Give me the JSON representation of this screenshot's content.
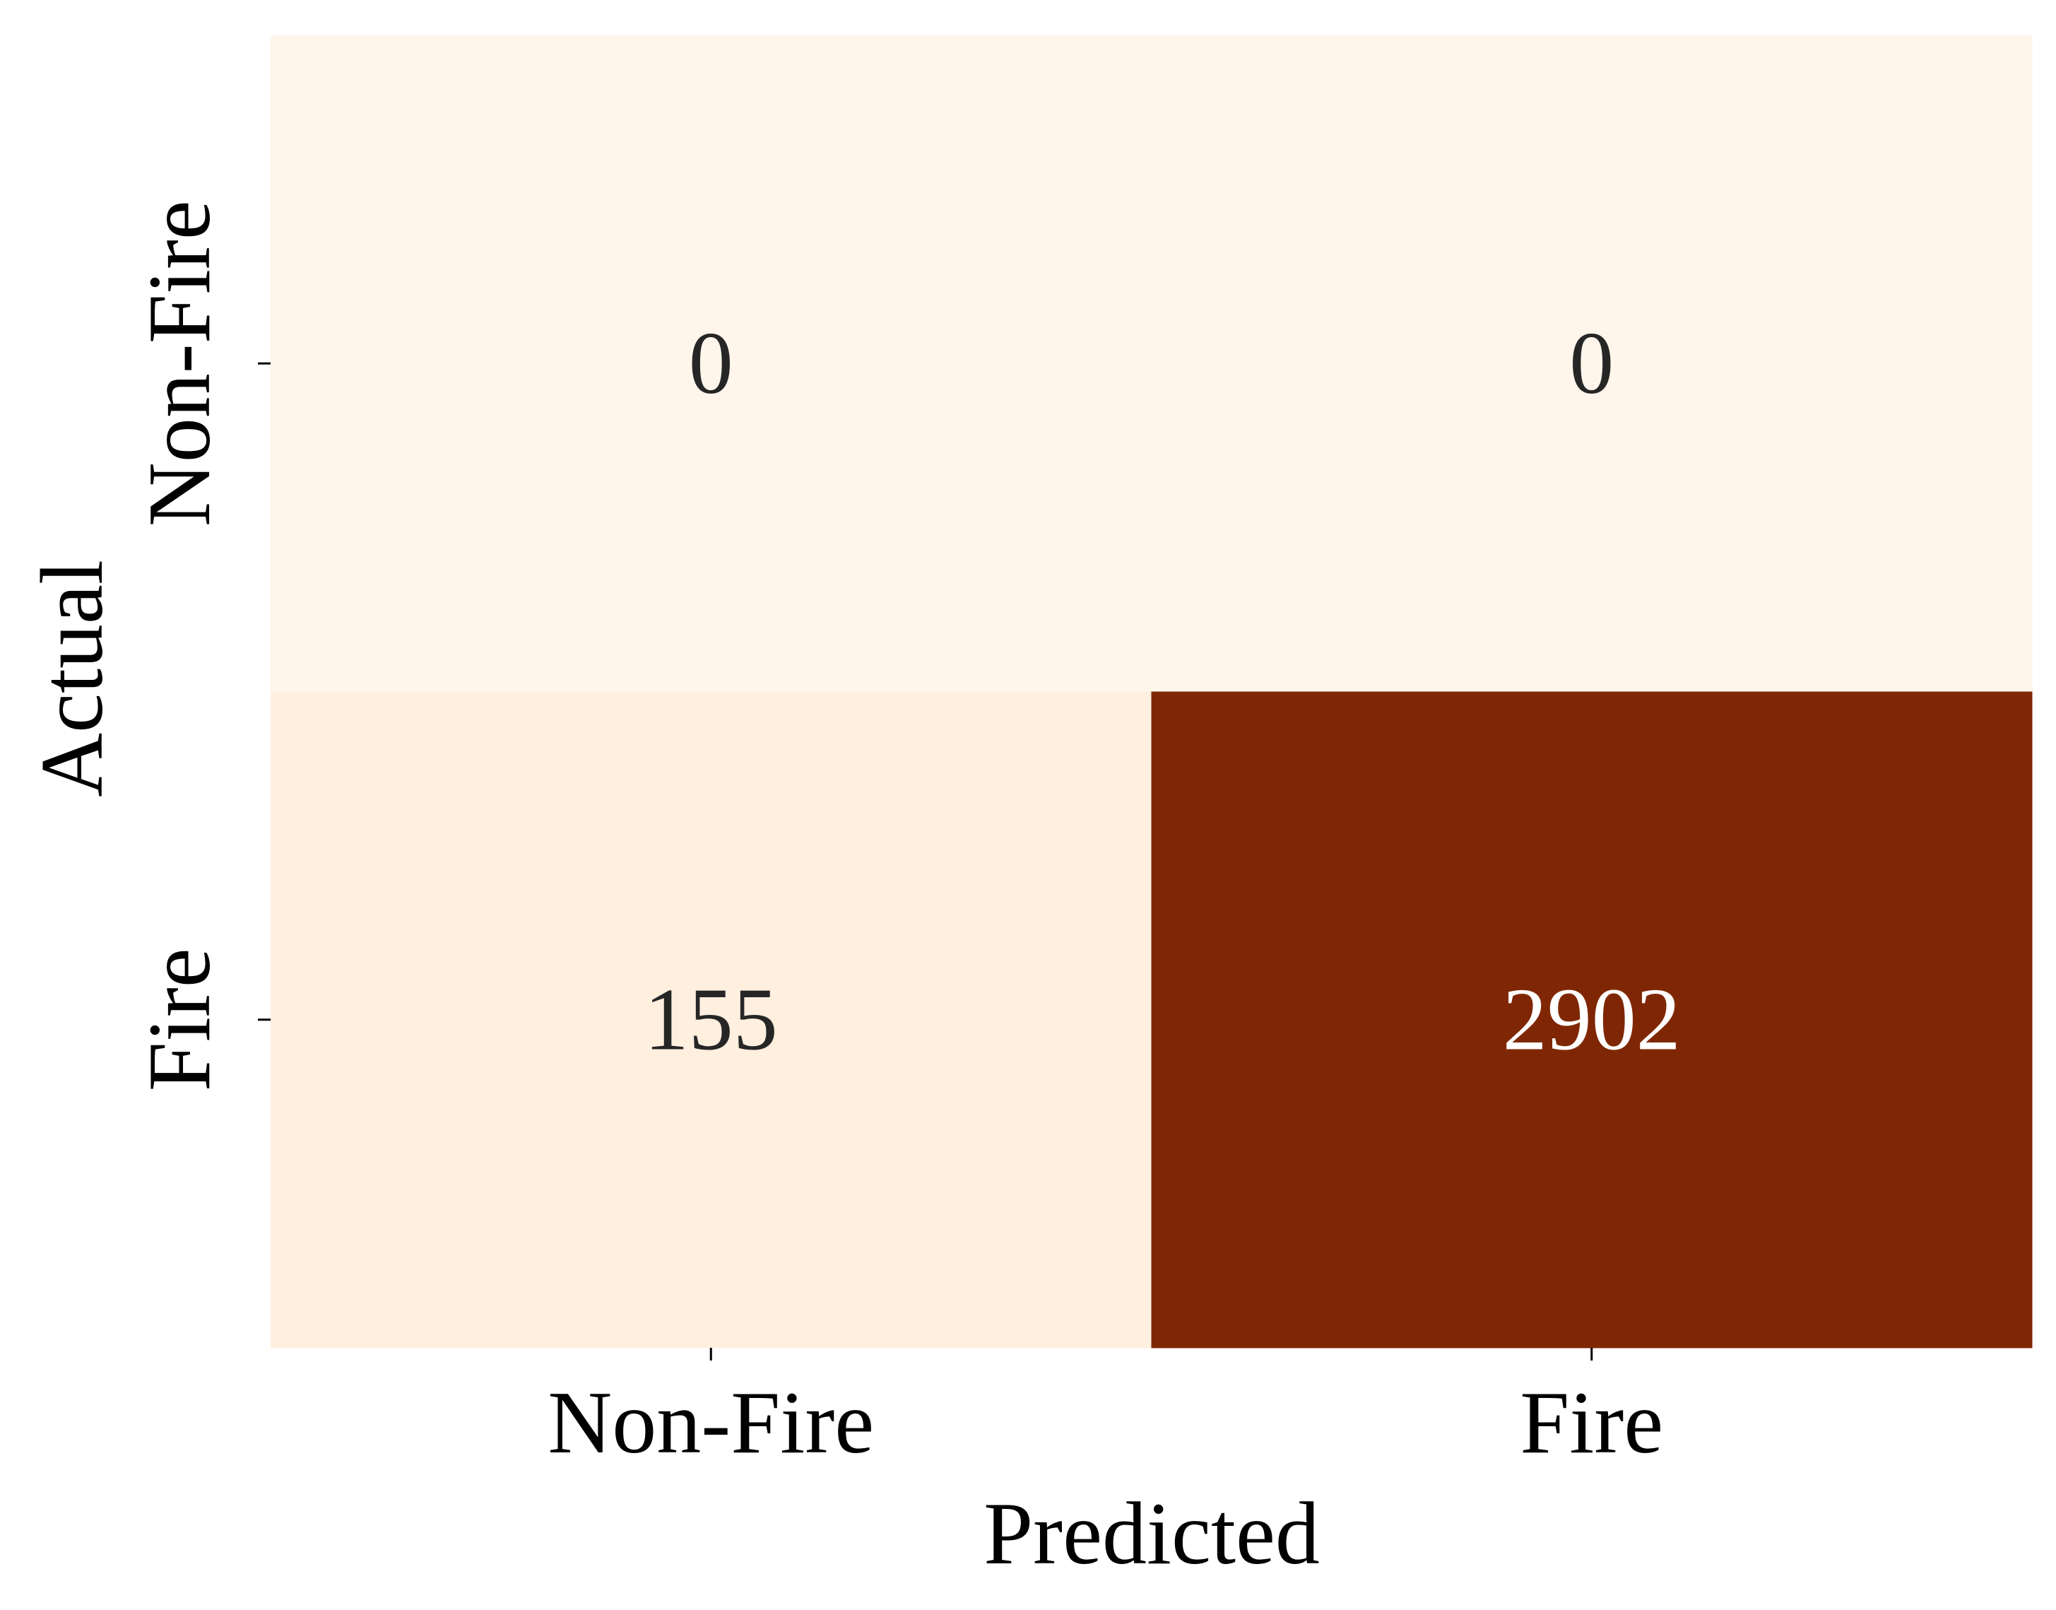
{
  "chart_data": {
    "type": "heatmap",
    "title": "",
    "xlabel": "Predicted",
    "ylabel": "Actual",
    "x_categories": [
      "Non-Fire",
      "Fire"
    ],
    "y_categories": [
      "Non-Fire",
      "Fire"
    ],
    "values": [
      [
        0,
        0
      ],
      [
        155,
        2902
      ]
    ],
    "colormap": "Oranges",
    "color_low": "#fff5eb",
    "color_high": "#7f2704",
    "annotation_text_dark": "#262626",
    "annotation_text_light": "#ffffff",
    "colorbar": false
  }
}
